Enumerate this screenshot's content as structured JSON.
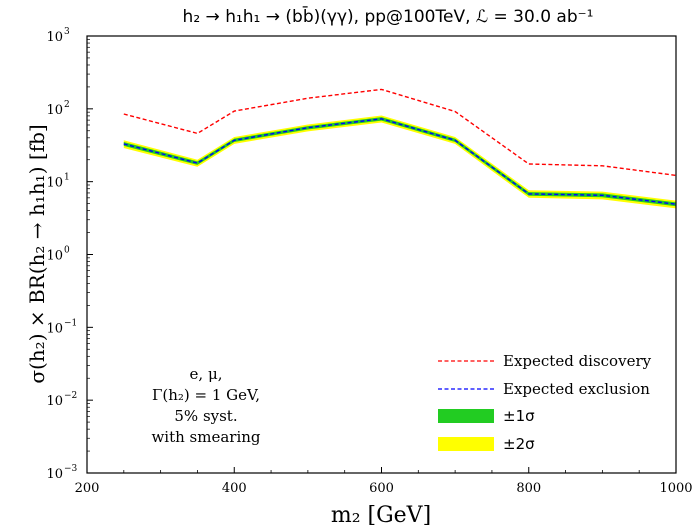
{
  "chart_data": {
    "type": "line",
    "title": "h₂ → h₁h₁ → (bb̄)(γγ), pp@100TeV, ℒ = 30.0 ab⁻¹",
    "xlabel": "m₂ [GeV]",
    "ylabel": "σ(h₂) × BR(h₂ → h₁h₁) [fb]",
    "xlim": [
      200,
      1000
    ],
    "ylim": [
      0.001,
      1000
    ],
    "yscale": "log",
    "xticks": [
      200,
      400,
      600,
      800,
      1000
    ],
    "yticks": [
      {
        "value": 0.001,
        "base": "10",
        "exp": "−3"
      },
      {
        "value": 0.01,
        "base": "10",
        "exp": "−2"
      },
      {
        "value": 0.1,
        "base": "10",
        "exp": "−1"
      },
      {
        "value": 1,
        "base": "10",
        "exp": "0"
      },
      {
        "value": 10,
        "base": "10",
        "exp": "1"
      },
      {
        "value": 100,
        "base": "10",
        "exp": "2"
      },
      {
        "value": 1000,
        "base": "10",
        "exp": "3"
      }
    ],
    "x": [
      250,
      350,
      400,
      500,
      600,
      700,
      800,
      900,
      1000
    ],
    "series": [
      {
        "name": "Expected discovery",
        "style": "dashed",
        "color": "#ff0000",
        "values": [
          85,
          46,
          93,
          140,
          185,
          92,
          17.5,
          16.5,
          12.2
        ]
      },
      {
        "name": "Expected exclusion",
        "style": "dashed",
        "color": "#0000ff",
        "values": [
          33,
          18,
          37,
          55,
          73,
          37,
          6.8,
          6.5,
          4.9
        ]
      }
    ],
    "bands": [
      {
        "name": "±1σ",
        "color": "#22cc22",
        "low": [
          31,
          17,
          35,
          52,
          69,
          35,
          6.4,
          6.1,
          4.6
        ],
        "high": [
          35,
          19,
          39,
          58,
          77,
          39,
          7.2,
          6.9,
          5.2
        ]
      },
      {
        "name": "±2σ",
        "color": "#ffff00",
        "low": [
          29,
          16,
          33,
          49,
          65,
          33,
          6.0,
          5.7,
          4.3
        ],
        "high": [
          37,
          20,
          41,
          61,
          81,
          41,
          7.6,
          7.3,
          5.5
        ]
      }
    ],
    "legend_position": "lower-right",
    "annotation": [
      "e, μ,",
      "Γ(h₂) = 1 GeV,",
      "5% syst.",
      "with smearing"
    ]
  }
}
